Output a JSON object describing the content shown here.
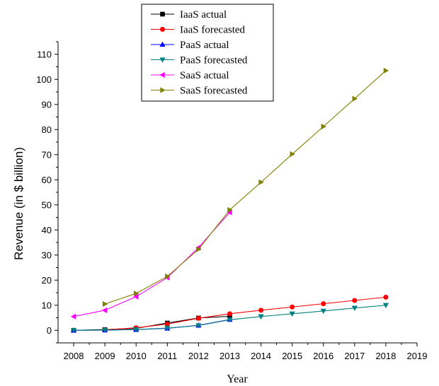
{
  "chart_data": {
    "type": "line",
    "xlabel": "Year",
    "ylabel": "Revenue (in $ billion)",
    "xlim": [
      2007.5,
      2019
    ],
    "ylim": [
      -5,
      115
    ],
    "x_ticks": [
      2008,
      2009,
      2010,
      2011,
      2012,
      2013,
      2014,
      2015,
      2016,
      2017,
      2018,
      2019
    ],
    "y_ticks": [
      0,
      10,
      20,
      30,
      40,
      50,
      60,
      70,
      80,
      90,
      100,
      110
    ],
    "legend_position": "top-left",
    "grid": false,
    "series": [
      {
        "name": "IaaS actual",
        "color": "#000000",
        "marker": "square",
        "x": [
          2008,
          2009,
          2010,
          2011,
          2012,
          2013
        ],
        "y": [
          0,
          0.3,
          0.8,
          2.9,
          4.9,
          5.6
        ]
      },
      {
        "name": "IaaS forecasted",
        "color": "#ff0000",
        "marker": "circle",
        "x": [
          2009,
          2010,
          2011,
          2012,
          2013,
          2014,
          2015,
          2016,
          2017,
          2018
        ],
        "y": [
          0.2,
          1.0,
          2.5,
          4.8,
          6.6,
          8.0,
          9.3,
          10.6,
          11.9,
          13.2
        ]
      },
      {
        "name": "PaaS actual",
        "color": "#0000ff",
        "marker": "triangle-up",
        "x": [
          2008,
          2009,
          2010,
          2011,
          2012,
          2013
        ],
        "y": [
          0,
          0.1,
          0.3,
          0.8,
          2.0,
          4.3
        ]
      },
      {
        "name": "PaaS forecasted",
        "color": "#008080",
        "marker": "triangle-down",
        "x": [
          2008,
          2009,
          2010,
          2011,
          2012,
          2013,
          2014,
          2015,
          2016,
          2017,
          2018
        ],
        "y": [
          0,
          0.1,
          0.3,
          0.9,
          1.9,
          4.2,
          5.5,
          6.6,
          7.7,
          8.9,
          10.0
        ]
      },
      {
        "name": "SaaS actual",
        "color": "#ff00ff",
        "marker": "triangle-left",
        "x": [
          2008,
          2009,
          2010,
          2011,
          2012,
          2013
        ],
        "y": [
          5.5,
          8.0,
          13.4,
          21.0,
          33.0,
          47.0
        ]
      },
      {
        "name": "SaaS forecasted",
        "color": "#808000",
        "marker": "triangle-right",
        "x": [
          2009,
          2010,
          2011,
          2012,
          2013,
          2014,
          2015,
          2016,
          2017,
          2018
        ],
        "y": [
          10.5,
          14.7,
          21.5,
          32.3,
          48.0,
          59.0,
          70.2,
          81.2,
          92.3,
          103.5
        ]
      }
    ]
  }
}
